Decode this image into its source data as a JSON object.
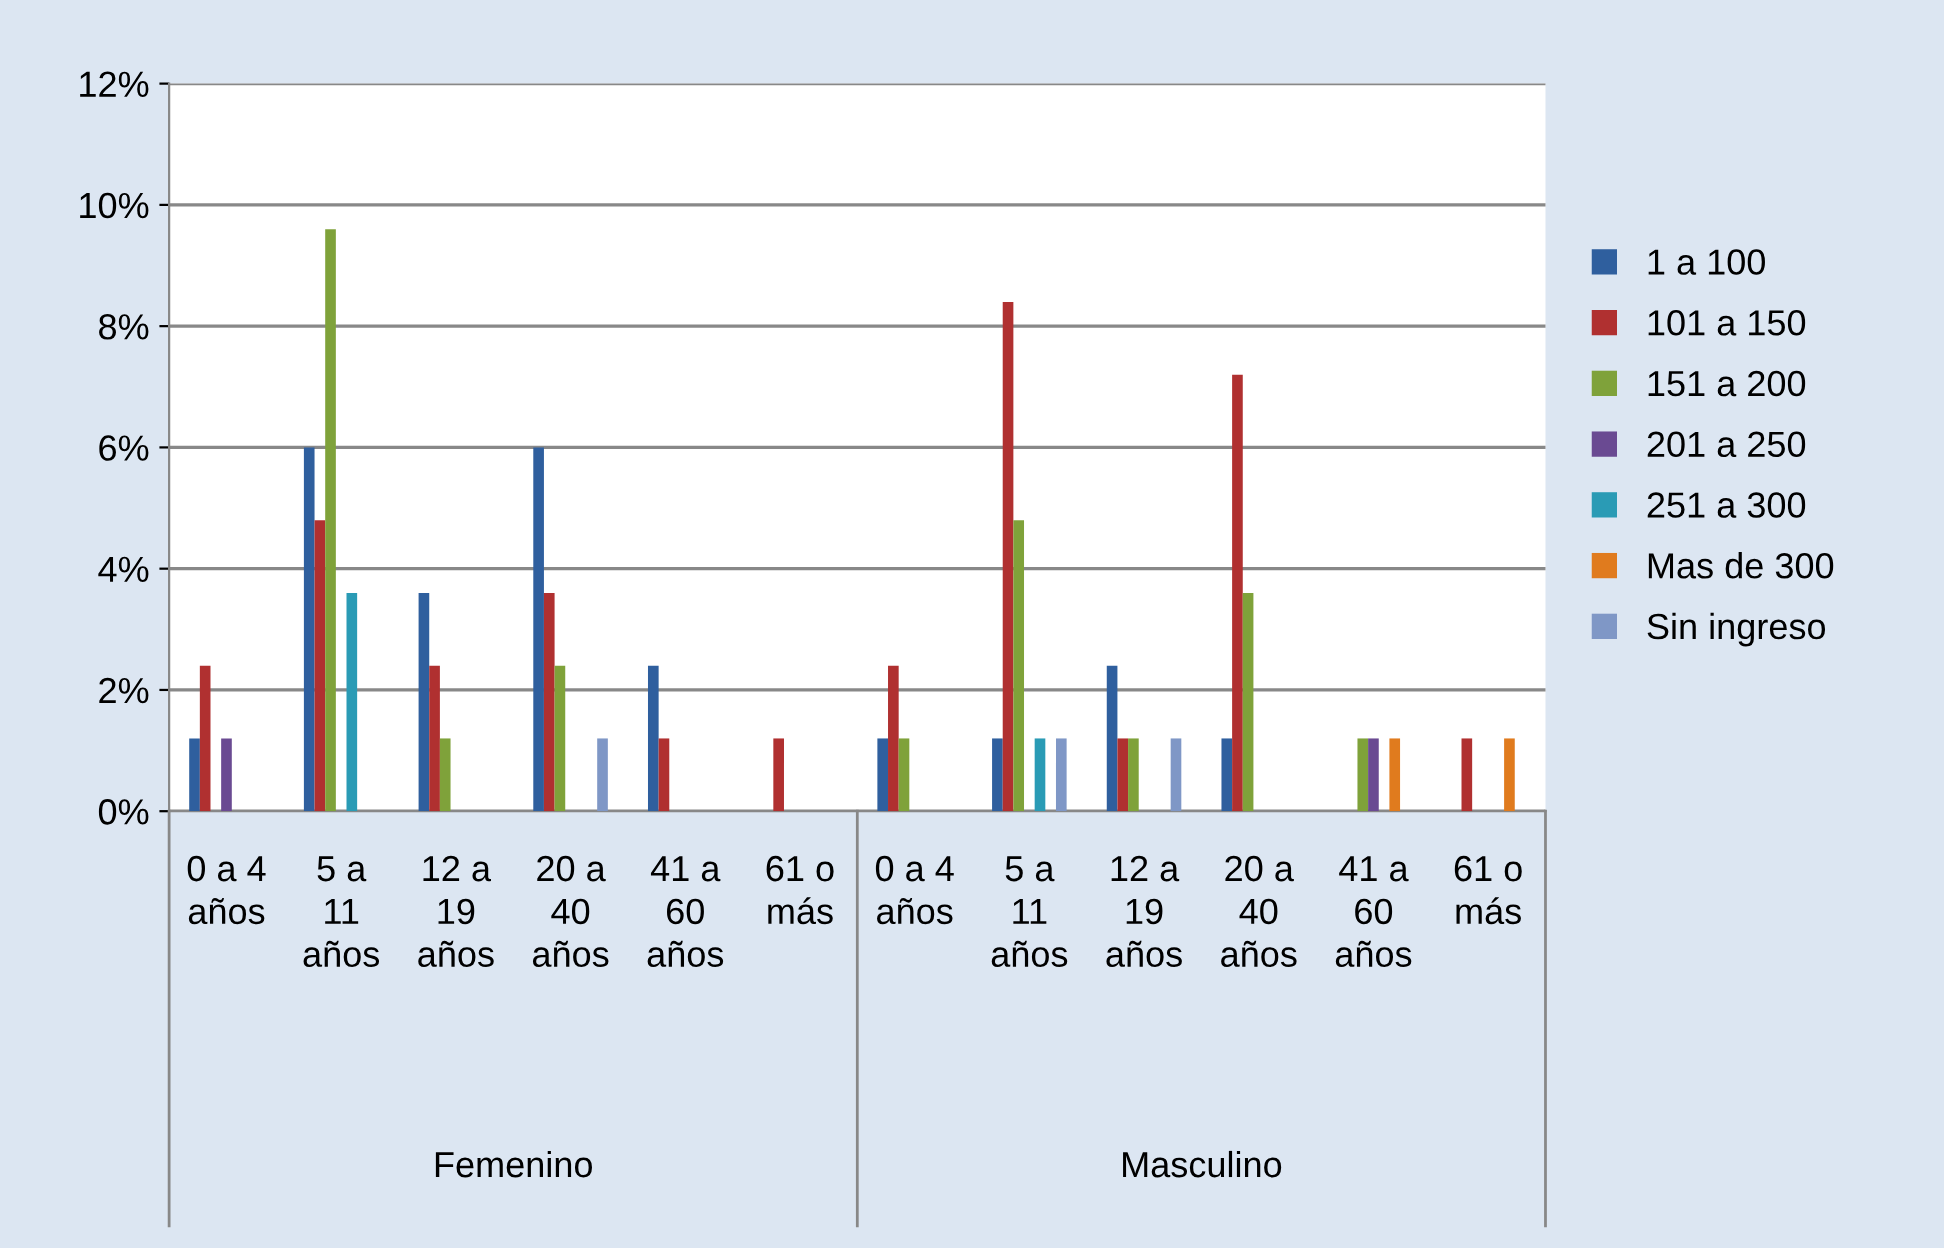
{
  "chart_data": {
    "type": "bar",
    "categories": [
      "0 a 4 años",
      "5 a 11 años",
      "12 a 19 años",
      "20 a 40 años",
      "41 a 60 años",
      "61 o más",
      "0 a 4 años",
      "5 a 11 años",
      "12 a 19 años",
      "20 a 40 años",
      "41 a 60 años",
      "61 o más"
    ],
    "series": [
      {
        "name": "1 a 100",
        "color": "#2f5f9e",
        "values": [
          1.2,
          6.0,
          3.6,
          6.0,
          2.4,
          null,
          1.2,
          1.2,
          2.4,
          1.2,
          null,
          null
        ]
      },
      {
        "name": "101 a 150",
        "color": "#b03030",
        "values": [
          2.4,
          4.8,
          2.4,
          3.6,
          1.2,
          1.2,
          2.4,
          8.4,
          1.2,
          7.2,
          null,
          1.2
        ]
      },
      {
        "name": "151 a 200",
        "color": "#7fa23a",
        "values": [
          null,
          9.6,
          1.2,
          2.4,
          null,
          null,
          1.2,
          4.8,
          1.2,
          3.6,
          1.2,
          null
        ]
      },
      {
        "name": "201 a 250",
        "color": "#6a4a92",
        "values": [
          1.2,
          null,
          null,
          null,
          null,
          null,
          null,
          null,
          null,
          null,
          1.2,
          null
        ]
      },
      {
        "name": "251 a 300",
        "color": "#2a9bb5",
        "values": [
          null,
          3.6,
          null,
          null,
          null,
          null,
          null,
          1.2,
          null,
          null,
          null,
          null
        ]
      },
      {
        "name": "Mas de 300",
        "color": "#e07b1e",
        "values": [
          null,
          null,
          null,
          null,
          null,
          null,
          null,
          null,
          null,
          null,
          1.2,
          1.2
        ]
      },
      {
        "name": "Sin ingreso",
        "color": "#7f97c6",
        "values": [
          null,
          null,
          null,
          1.2,
          null,
          null,
          null,
          1.2,
          1.2,
          null,
          null,
          null
        ]
      }
    ],
    "annotations": [
      "Femenino",
      "Masculino"
    ],
    "ylim": [
      0,
      12
    ],
    "yticks": [
      {
        "value": 0,
        "label": "0%"
      },
      {
        "value": 2,
        "label": "2%"
      },
      {
        "value": 4,
        "label": "4%"
      },
      {
        "value": 6,
        "label": "6%"
      },
      {
        "value": 8,
        "label": "8%"
      },
      {
        "value": 10,
        "label": "10%"
      },
      {
        "value": 12,
        "label": "12%"
      }
    ],
    "grid": "y",
    "legend": "right"
  }
}
